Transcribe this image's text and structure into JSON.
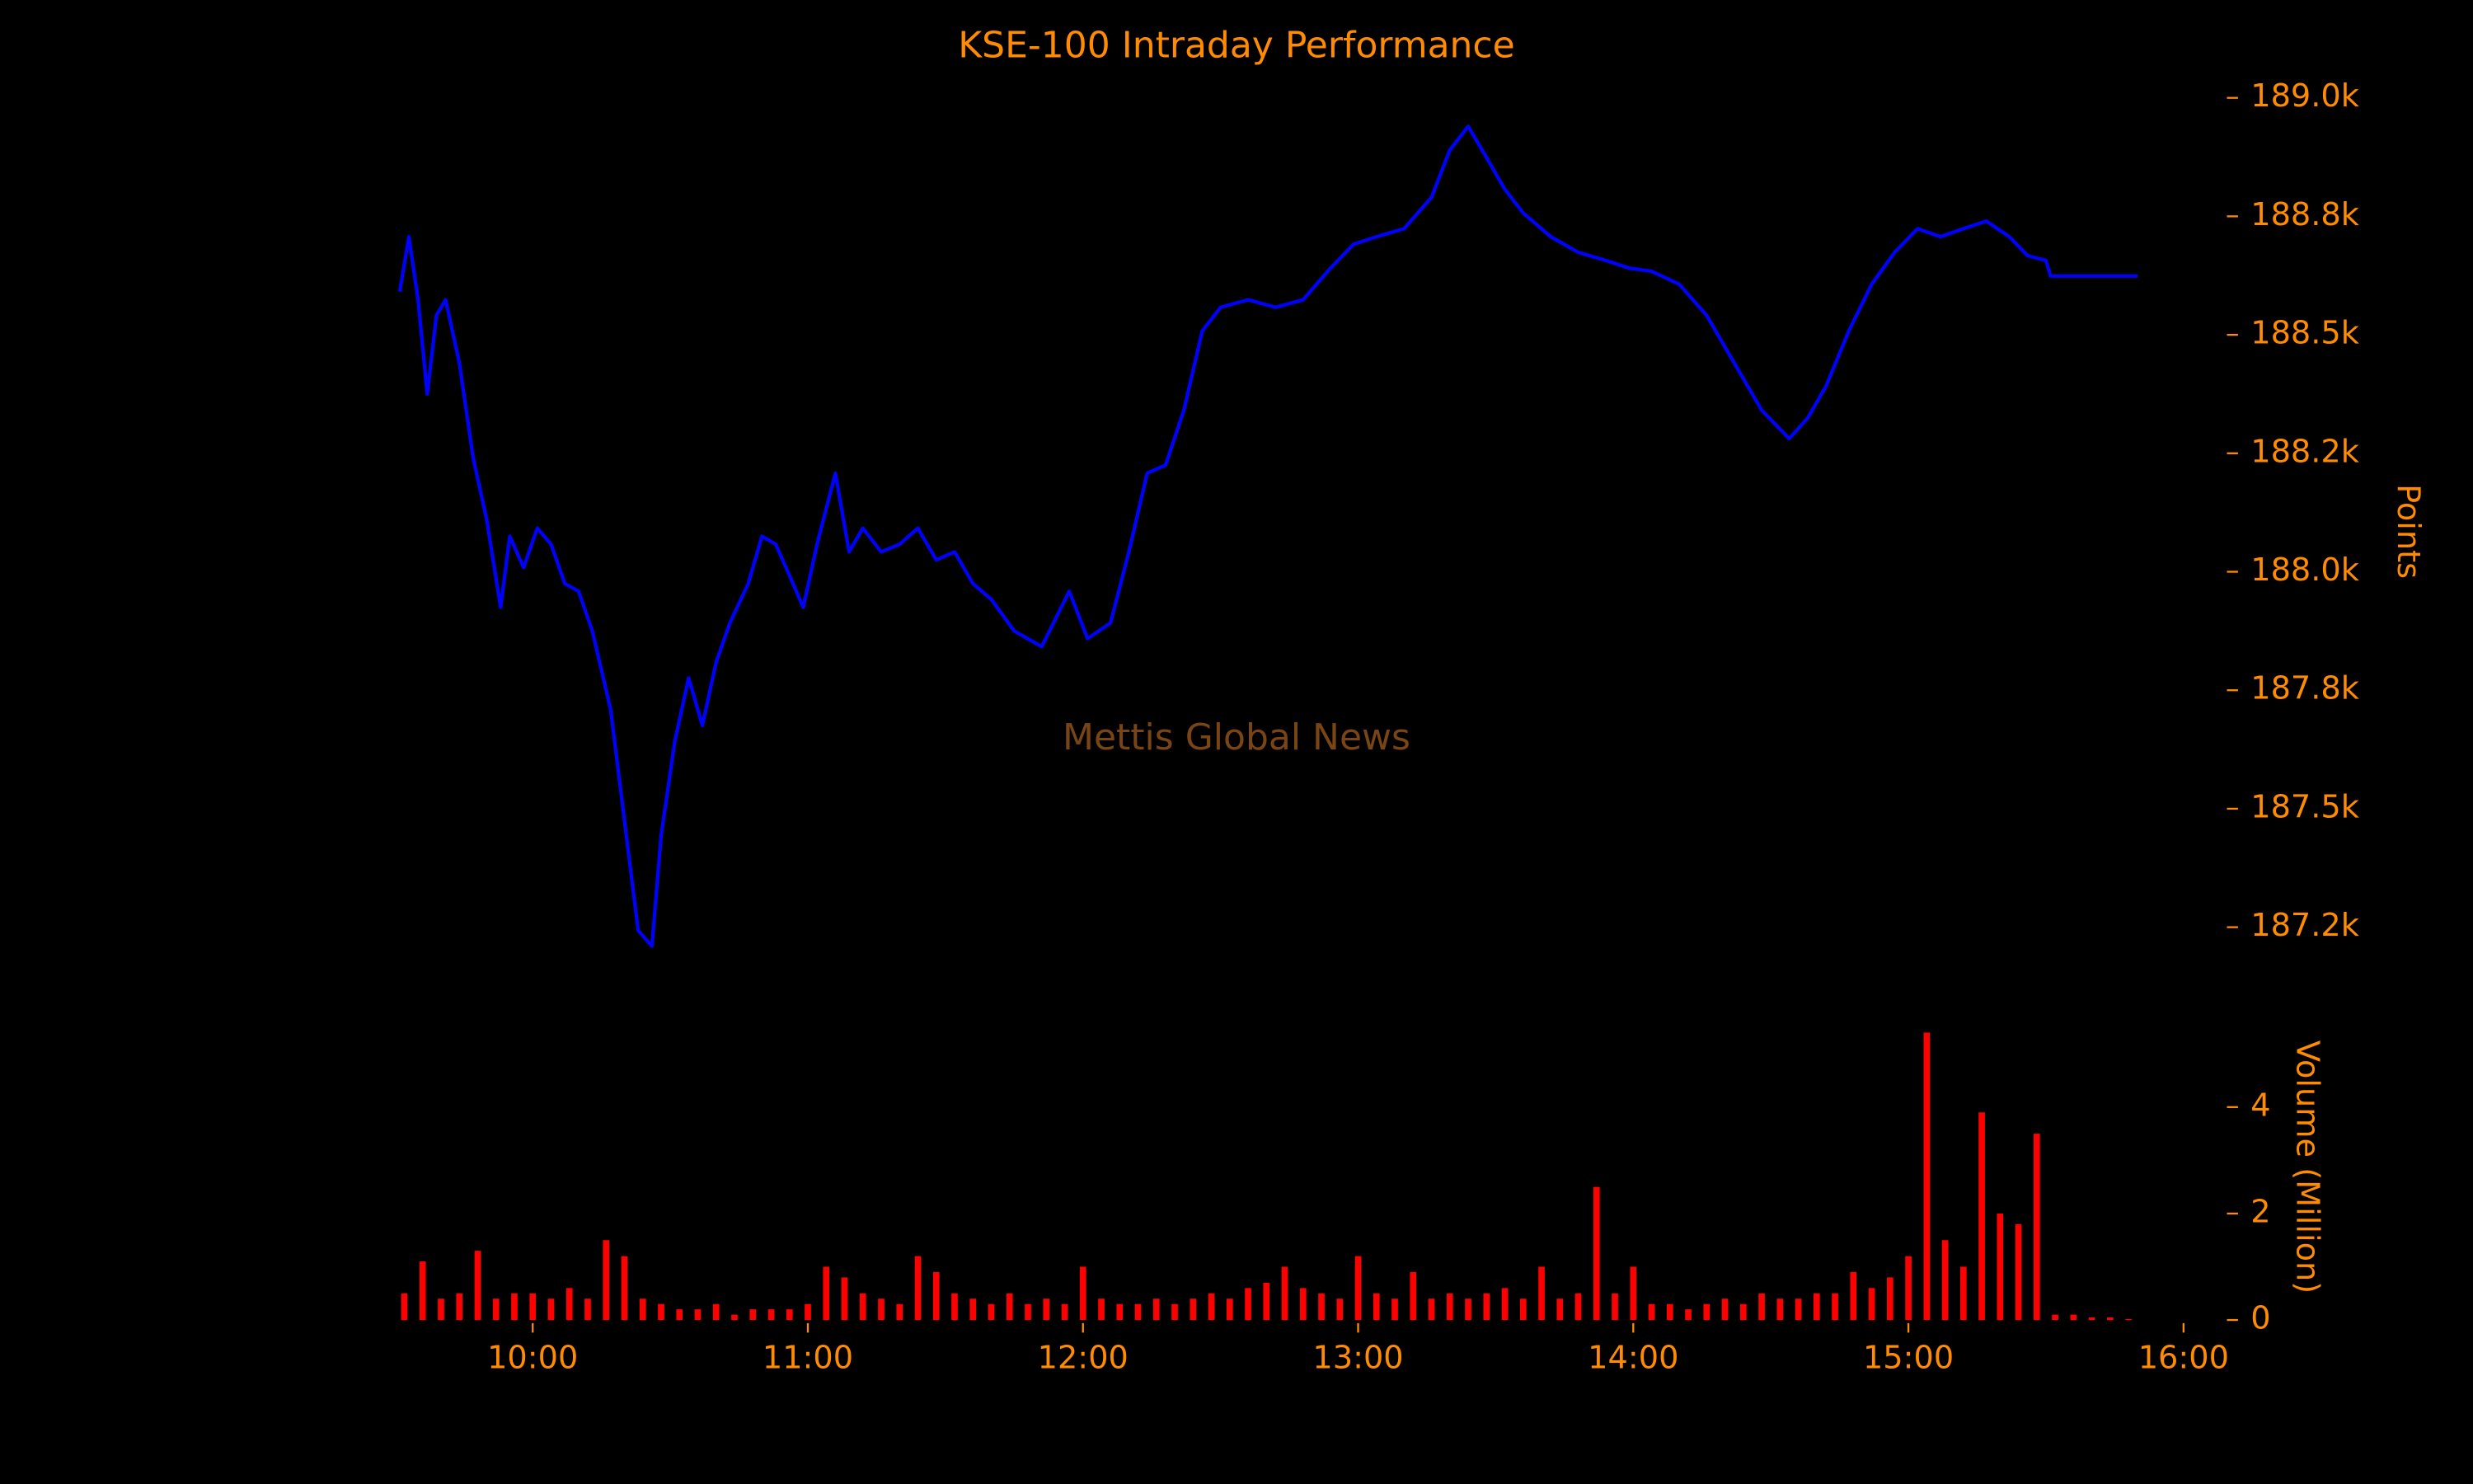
{
  "chart_data": [
    {
      "type": "line",
      "title": "KSE-100 Intraday Performance",
      "ylabel": "Points",
      "annotation": "Mettis Global News",
      "color": "#0000ff",
      "xlim": [
        "09:25",
        "16:05"
      ],
      "x": [
        "09:31",
        "09:33",
        "09:35",
        "09:37",
        "09:39",
        "09:41",
        "09:44",
        "09:47",
        "09:50",
        "09:53",
        "09:55",
        "09:58",
        "10:01",
        "10:04",
        "10:07",
        "10:10",
        "10:13",
        "10:17",
        "10:20",
        "10:23",
        "10:26",
        "10:28",
        "10:31",
        "10:34",
        "10:37",
        "10:40",
        "10:43",
        "10:47",
        "10:50",
        "10:53",
        "10:56",
        "10:59",
        "11:02",
        "11:06",
        "11:09",
        "11:12",
        "11:16",
        "11:20",
        "11:24",
        "11:28",
        "11:32",
        "11:36",
        "11:40",
        "11:45",
        "11:51",
        "11:57",
        "12:01",
        "12:06",
        "12:10",
        "12:14",
        "12:18",
        "12:22",
        "12:26",
        "12:30",
        "12:36",
        "12:42",
        "12:48",
        "12:54",
        "12:59",
        "13:04",
        "13:10",
        "13:16",
        "13:20",
        "13:24",
        "13:28",
        "13:32",
        "13:36",
        "13:42",
        "13:48",
        "13:54",
        "13:59",
        "14:04",
        "14:10",
        "14:16",
        "14:22",
        "14:28",
        "14:34",
        "14:38",
        "14:42",
        "14:47",
        "14:52",
        "14:57",
        "15:02",
        "15:07",
        "15:12",
        "15:17",
        "15:22",
        "15:26",
        "15:30",
        "15:31",
        "15:50"
      ],
      "values": [
        188591,
        188707,
        188574,
        188375,
        188541,
        188574,
        188441,
        188241,
        188108,
        187925,
        188075,
        188009,
        188092,
        188058,
        187975,
        187959,
        187875,
        187709,
        187476,
        187243,
        187210,
        187443,
        187643,
        187776,
        187676,
        187809,
        187892,
        187975,
        188075,
        188058,
        187992,
        187925,
        188058,
        188208,
        188042,
        188092,
        188042,
        188058,
        188092,
        188025,
        188042,
        187975,
        187942,
        187875,
        187842,
        187959,
        187859,
        187892,
        188042,
        188208,
        188225,
        188341,
        188508,
        188558,
        188574,
        188558,
        188574,
        188641,
        188691,
        188707,
        188724,
        188790,
        188890,
        188940,
        188874,
        188807,
        188757,
        188707,
        188674,
        188657,
        188641,
        188634,
        188607,
        188541,
        188441,
        188341,
        188281,
        188324,
        188391,
        188508,
        188607,
        188674,
        188724,
        188707,
        188724,
        188740,
        188707,
        188667,
        188657,
        188624,
        188624
      ],
      "ylim": [
        187100,
        189100
      ],
      "yticks": [
        {
          "value": 187250,
          "label": "187.2k"
        },
        {
          "value": 187500,
          "label": "187.5k"
        },
        {
          "value": 187750,
          "label": "187.8k"
        },
        {
          "value": 188000,
          "label": "188.0k"
        },
        {
          "value": 188250,
          "label": "188.2k"
        },
        {
          "value": 188500,
          "label": "188.5k"
        },
        {
          "value": 188750,
          "label": "188.8k"
        },
        {
          "value": 189000,
          "label": "189.0k"
        }
      ]
    },
    {
      "type": "bar",
      "ylabel": "Volume (Million)",
      "color": "#ff0000",
      "xlim": [
        "09:25",
        "16:05"
      ],
      "xticks": [
        "10:00",
        "11:00",
        "12:00",
        "13:00",
        "14:00",
        "15:00",
        "16:00"
      ],
      "x": [
        "09:32",
        "09:36",
        "09:40",
        "09:44",
        "09:48",
        "09:52",
        "09:56",
        "10:00",
        "10:04",
        "10:08",
        "10:12",
        "10:16",
        "10:20",
        "10:24",
        "10:28",
        "10:32",
        "10:36",
        "10:40",
        "10:44",
        "10:48",
        "10:52",
        "10:56",
        "11:00",
        "11:04",
        "11:08",
        "11:12",
        "11:16",
        "11:20",
        "11:24",
        "11:28",
        "11:32",
        "11:36",
        "11:40",
        "11:44",
        "11:48",
        "11:52",
        "11:56",
        "12:00",
        "12:04",
        "12:08",
        "12:12",
        "12:16",
        "12:20",
        "12:24",
        "12:28",
        "12:32",
        "12:36",
        "12:40",
        "12:44",
        "12:48",
        "12:52",
        "12:56",
        "13:00",
        "13:04",
        "13:08",
        "13:12",
        "13:16",
        "13:20",
        "13:24",
        "13:28",
        "13:32",
        "13:36",
        "13:40",
        "13:44",
        "13:48",
        "13:52",
        "13:56",
        "14:00",
        "14:04",
        "14:08",
        "14:12",
        "14:16",
        "14:20",
        "14:24",
        "14:28",
        "14:32",
        "14:36",
        "14:40",
        "14:44",
        "14:48",
        "14:52",
        "14:56",
        "15:00",
        "15:04",
        "15:08",
        "15:12",
        "15:16",
        "15:20",
        "15:24",
        "15:28",
        "15:32",
        "15:36",
        "15:40",
        "15:44",
        "15:48"
      ],
      "values": [
        0.5,
        1.1,
        0.4,
        0.5,
        1.3,
        0.4,
        0.5,
        0.5,
        0.4,
        0.6,
        0.4,
        1.5,
        1.2,
        0.4,
        0.3,
        0.2,
        0.2,
        0.3,
        0.1,
        0.2,
        0.2,
        0.2,
        0.3,
        1.0,
        0.8,
        0.5,
        0.4,
        0.3,
        1.2,
        0.9,
        0.5,
        0.4,
        0.3,
        0.5,
        0.3,
        0.4,
        0.3,
        1.0,
        0.4,
        0.3,
        0.3,
        0.4,
        0.3,
        0.4,
        0.5,
        0.4,
        0.6,
        0.7,
        1.0,
        0.6,
        0.5,
        0.4,
        1.2,
        0.5,
        0.4,
        0.9,
        0.4,
        0.5,
        0.4,
        0.5,
        0.6,
        0.4,
        1.0,
        0.4,
        0.5,
        2.5,
        0.5,
        1.0,
        0.3,
        0.3,
        0.2,
        0.3,
        0.4,
        0.3,
        0.5,
        0.4,
        0.4,
        0.5,
        0.5,
        0.9,
        0.6,
        0.8,
        1.2,
        5.4,
        1.5,
        1.0,
        3.9,
        2.0,
        1.8,
        3.5,
        0.1,
        0.1,
        0.05,
        0.05,
        0.02
      ],
      "ylim": [
        0,
        5.6
      ],
      "yticks": [
        0,
        2,
        4
      ]
    }
  ]
}
